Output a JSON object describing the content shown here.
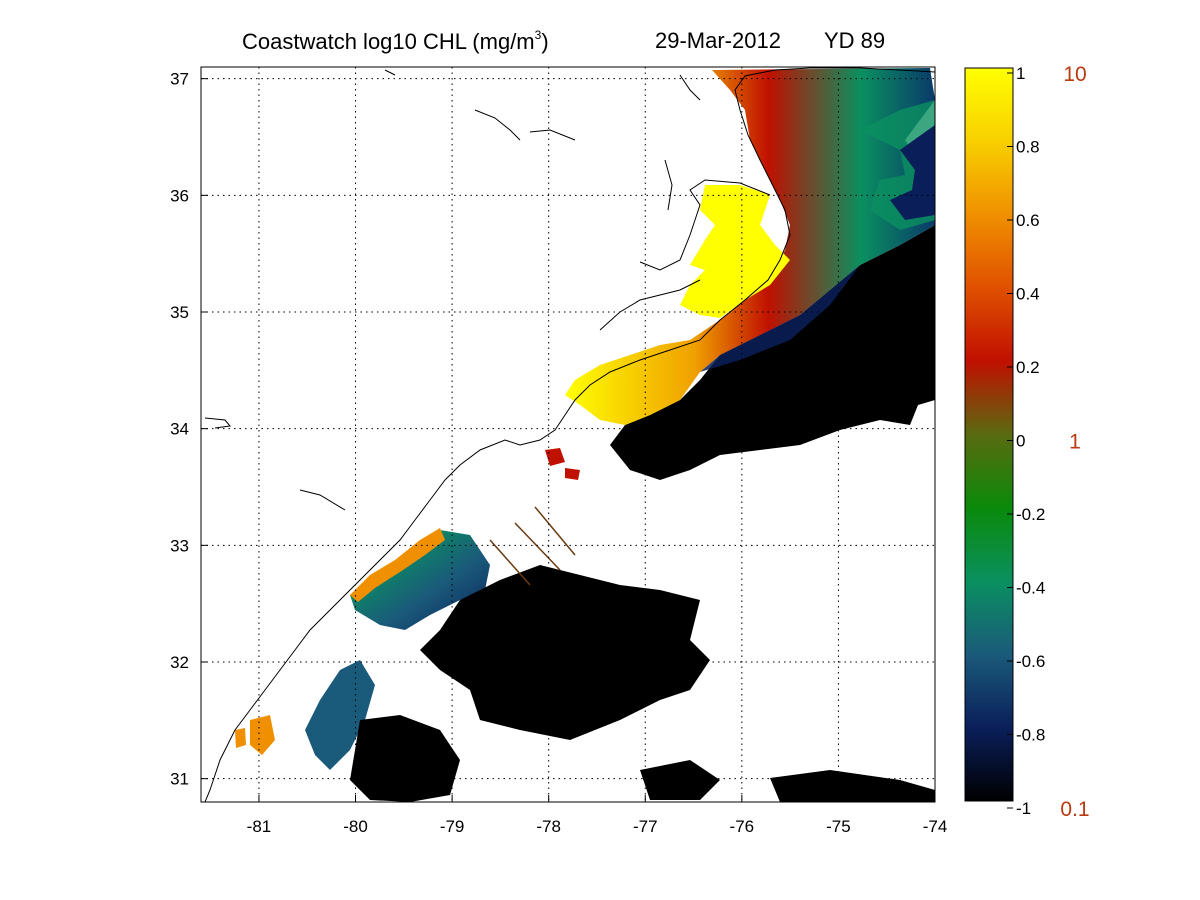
{
  "title": {
    "main": "Coastwatch  log10  CHL (mg/m",
    "main_sup": "3",
    "main_close": ")",
    "date": "29-Mar-2012",
    "yearday": "YD 89"
  },
  "map": {
    "lon_range": [
      -81.6,
      -74
    ],
    "lat_range": [
      30.8,
      37.1
    ],
    "x_ticks": [
      "-81",
      "-80",
      "-79",
      "-78",
      "-77",
      "-76",
      "-75",
      "-74"
    ],
    "y_ticks": [
      "31",
      "32",
      "33",
      "34",
      "35",
      "36",
      "37"
    ],
    "grid": "dotted",
    "land_color": "#ffffff",
    "coastline_color": "#000000"
  },
  "colorbar": {
    "log10_range": [
      -1,
      1
    ],
    "tick_labels": [
      "1",
      "0.8",
      "0.6",
      "0.4",
      "0.2",
      "0",
      "-0.2",
      "-0.4",
      "-0.6",
      "-0.8",
      "-1"
    ],
    "concentration_labels": [
      "10",
      "1",
      "0.1"
    ],
    "colors": [
      "#000000",
      "#0a1f5a",
      "#1a5a7a",
      "#0a9060",
      "#0a8a0a",
      "#5a6a10",
      "#c01000",
      "#e05000",
      "#f09000",
      "#f8d000",
      "#ffff00"
    ],
    "concentration_label_color": "#b83a10"
  }
}
